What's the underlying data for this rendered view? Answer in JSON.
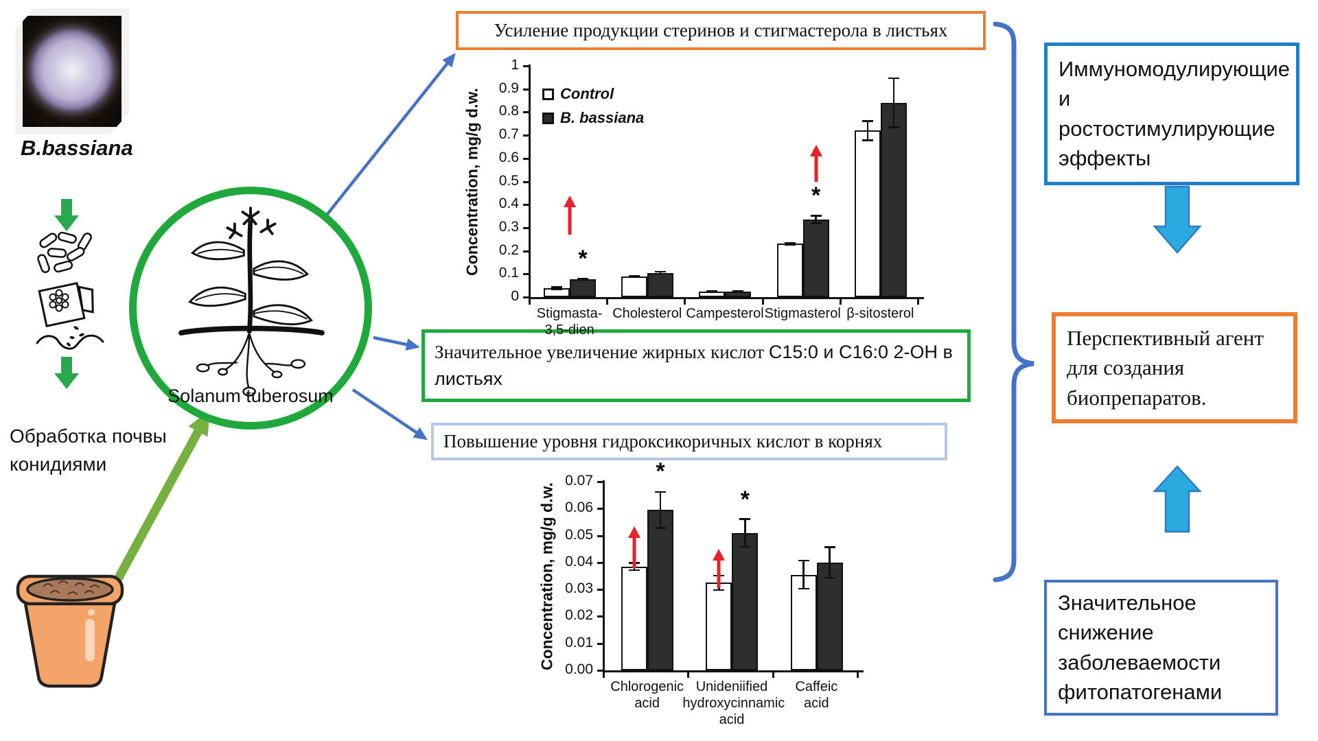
{
  "left_panel": {
    "petri_photo_label": "B.bassiana",
    "soil_treatment_label": "Обработка почвы конидиями",
    "plant_circle_label": "Solanum tuberosum"
  },
  "finding_boxes": {
    "sterols": "Усиление продукции стеринов и стигмастерола в листьях",
    "fatty_acids_serif": "Значительное увеличение жирных кислот ",
    "fatty_acids_sans": "С15:0 и С16:0 2-ОН в листьях",
    "hydroxycinnamic": "Повышение уровня гидроксикоричных кислот в корнях"
  },
  "conclusion_boxes": {
    "immuno": "Иммуномодулирующие и ростостимулирующие эффекты",
    "agent": "Перспективный агент для создания биопрепаратов.",
    "pathogens": "Значительное снижение заболеваемости фитопатогенами"
  },
  "colors": {
    "orange_border": "#ED7D31",
    "green_border": "#1FA83C",
    "green_arrow": "#76B041",
    "small_green_arrow": "#2AA84F",
    "blue_connector": "#4472C4",
    "blue_bright_border": "#1F7EC4",
    "light_blue_border": "#B4C7E7",
    "cyan_arrow_fill": "#29ABE2",
    "cyan_arrow_stroke": "#2F7AC1",
    "red_arrow": "#E8212B",
    "bar_control_fill": "#FFFFFF",
    "bar_treatment_fill": "#2E2E2E"
  },
  "chart_data": [
    {
      "type": "bar",
      "title": "",
      "xlabel": "",
      "ylabel": "Concentration, mg/g d.w.",
      "ylim": [
        0,
        1
      ],
      "grid": false,
      "legend_position": "top-left",
      "legend": [
        "Control",
        "B. bassiana"
      ],
      "ytick_values": [
        0,
        0.1,
        0.2,
        0.3,
        0.4,
        0.5,
        0.6,
        0.7,
        0.8,
        0.9,
        1
      ],
      "ytick_labels": [
        "0",
        "0.1",
        "0.2",
        "0.3",
        "0.4",
        "0.5",
        "0.6",
        "0.7",
        "0.8",
        "0.9",
        "1"
      ],
      "categories": [
        "Stigmasta-\n3,5-dien",
        "Cholesterol",
        "Campesterol",
        "Stigmasterol",
        "β-sitosterol"
      ],
      "series": [
        {
          "name": "Control",
          "color": "#FFFFFF",
          "values": [
            0.038,
            0.09,
            0.025,
            0.23,
            0.72
          ],
          "errors": [
            0.008,
            0.005,
            0.003,
            0.008,
            0.045
          ]
        },
        {
          "name": "B. bassiana",
          "color": "#2E2E2E",
          "values": [
            0.078,
            0.105,
            0.025,
            0.335,
            0.84
          ],
          "errors": [
            0.005,
            0.008,
            0.003,
            0.02,
            0.11
          ]
        }
      ],
      "annotations": [
        {
          "group": 0,
          "asterisk_y": 0.115,
          "asterisk_col": "treatment",
          "arrow_from": 0.27,
          "arrow_to": 0.44,
          "arrow_col": "center"
        },
        {
          "group": 3,
          "asterisk_y": 0.39,
          "asterisk_col": "treatment",
          "arrow_from": 0.5,
          "arrow_to": 0.66,
          "arrow_col": "treatment"
        }
      ]
    },
    {
      "type": "bar",
      "title": "",
      "xlabel": "",
      "ylabel": "Concentration, mg/g d.w.",
      "ylim": [
        0,
        0.07
      ],
      "grid": false,
      "legend_position": "none",
      "legend": [],
      "ytick_values": [
        0,
        0.01,
        0.02,
        0.03,
        0.04,
        0.05,
        0.06,
        0.07
      ],
      "ytick_labels": [
        "0.00",
        "0.01",
        "0.02",
        "0.03",
        "0.04",
        "0.05",
        "0.06",
        "0.07"
      ],
      "categories": [
        "Chlorogenic\nacid",
        "Unideniified\nhydroxycinnamic\nacid",
        "Caffeic\nacid"
      ],
      "series": [
        {
          "name": "Control",
          "color": "#FFFFFF",
          "values": [
            0.0385,
            0.0325,
            0.0355
          ],
          "errors": [
            0.0017,
            0.003,
            0.0055
          ]
        },
        {
          "name": "B. bassiana",
          "color": "#2E2E2E",
          "values": [
            0.0595,
            0.051,
            0.04
          ],
          "errors": [
            0.007,
            0.0055,
            0.006
          ]
        }
      ],
      "annotations": [
        {
          "group": 0,
          "asterisk_y": 0.0695,
          "asterisk_col": "treatment",
          "arrow_from": 0.038,
          "arrow_to": 0.0535,
          "arrow_col": "control"
        },
        {
          "group": 1,
          "asterisk_y": 0.059,
          "asterisk_col": "treatment",
          "arrow_from": 0.0305,
          "arrow_to": 0.045,
          "arrow_col": "control"
        }
      ]
    }
  ]
}
